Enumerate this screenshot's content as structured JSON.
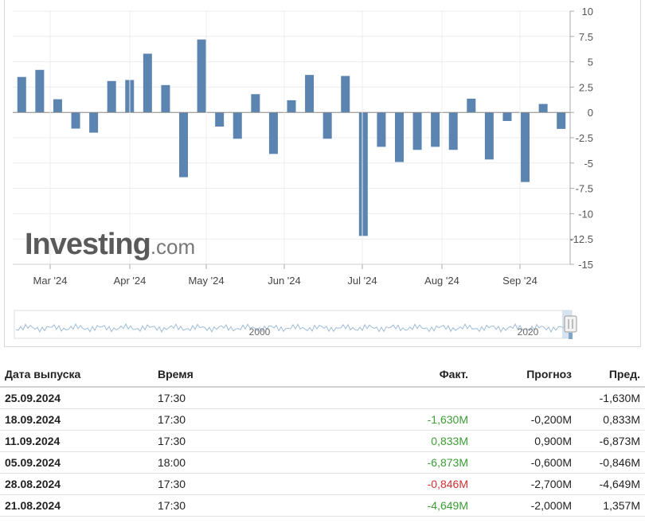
{
  "chart_data": {
    "type": "bar",
    "x_labels": [
      "Mar '24",
      "Apr '24",
      "May '24",
      "Jun '24",
      "Jul '24",
      "Aug '24",
      "Sep '24"
    ],
    "values": [
      3.5,
      4.2,
      1.3,
      -1.6,
      -2.0,
      3.1,
      3.2,
      5.8,
      2.7,
      -6.4,
      7.2,
      -1.4,
      -2.6,
      1.8,
      -4.1,
      1.2,
      3.7,
      -2.6,
      3.6,
      -12.2,
      -3.4,
      -4.9,
      -3.7,
      -3.4,
      -3.7,
      1.357,
      -4.649,
      -0.846,
      -6.873,
      0.833,
      -1.63
    ],
    "yticks": [
      "10",
      "7.5",
      "5",
      "2.5",
      "0",
      "-2.5",
      "-5",
      "-7.5",
      "-10",
      "-12.5",
      "-15"
    ],
    "ylim": [
      -15,
      10
    ],
    "bar_color": "#5b84b1",
    "navigator_labels": [
      "2000",
      "2020"
    ],
    "logo": {
      "main": "Investing",
      "suffix": ".com"
    }
  },
  "table": {
    "headers": [
      "Дата выпуска",
      "Время",
      "Факт.",
      "Прогноз",
      "Пред."
    ],
    "rows": [
      {
        "date": "25.09.2024",
        "time": "17:30",
        "actual": "",
        "actual_color": "",
        "forecast": "",
        "prev": "-1,630M"
      },
      {
        "date": "18.09.2024",
        "time": "17:30",
        "actual": "-1,630M",
        "actual_color": "green",
        "forecast": "-0,200M",
        "prev": "0,833M"
      },
      {
        "date": "11.09.2024",
        "time": "17:30",
        "actual": "0,833M",
        "actual_color": "green",
        "forecast": "0,900M",
        "prev": "-6,873M"
      },
      {
        "date": "05.09.2024",
        "time": "18:00",
        "actual": "-6,873M",
        "actual_color": "green",
        "forecast": "-0,600M",
        "prev": "-0,846M"
      },
      {
        "date": "28.08.2024",
        "time": "17:30",
        "actual": "-0,846M",
        "actual_color": "red",
        "forecast": "-2,700M",
        "prev": "-4,649M"
      },
      {
        "date": "21.08.2024",
        "time": "17:30",
        "actual": "-4,649M",
        "actual_color": "green",
        "forecast": "-2,000M",
        "prev": "1,357M"
      }
    ]
  }
}
